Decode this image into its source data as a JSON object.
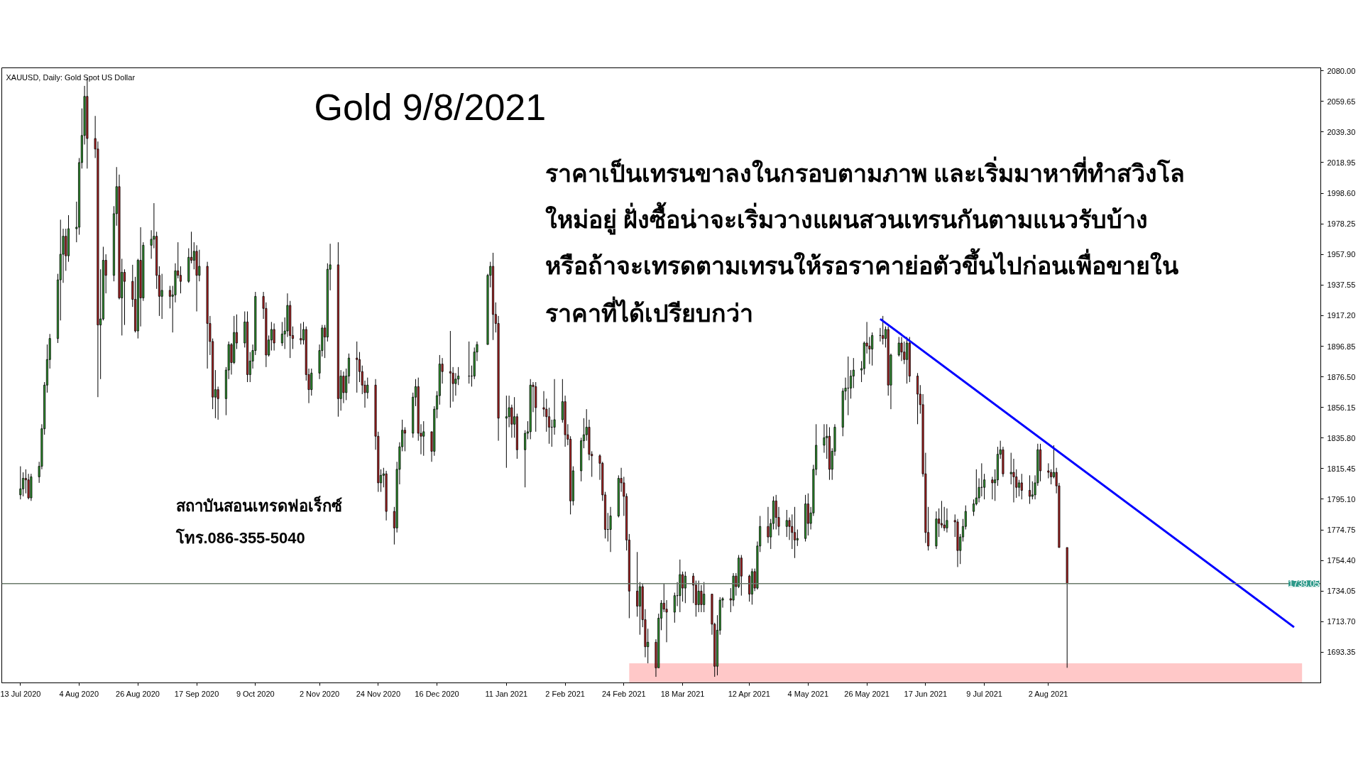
{
  "chart_data": {
    "type": "candlestick",
    "annotations": [
      "XAUUSD, Daily:  Gold Spot US Dollar",
      "Gold 9/8/2021",
      "ราคาเป็นเทรนขาลงในกรอบตามภาพ และเริ่มมาหาที่ทำสวิงโล",
      "ใหม่อยู่ ฝั่งซื้อน่าจะเริ่มวางแผนสวนเทรนกันตามแนวรับบ้าง",
      "หรือถ้าจะเทรดตามเทรนให้รอราคาย่อตัวขึ้นไปก่อนเพื่อขายใน",
      "ราคาที่ได้เปรียบกว่า",
      "สถาบันสอนเทรดฟอเร็กซ์",
      "โทร.086-355-5040"
    ],
    "xlim": [
      "2020-07-06",
      "2021-11-12"
    ],
    "ylim": [
      1673,
      2082
    ],
    "xticks": [
      {
        "value": "2020-07-13",
        "label": "13 Jul 2020"
      },
      {
        "value": "2020-08-04",
        "label": "4 Aug 2020"
      },
      {
        "value": "2020-08-26",
        "label": "26 Aug 2020"
      },
      {
        "value": "2020-09-17",
        "label": "17 Sep 2020"
      },
      {
        "value": "2020-10-09",
        "label": "9 Oct 2020"
      },
      {
        "value": "2020-11-02",
        "label": "2 Nov 2020"
      },
      {
        "value": "2020-11-24",
        "label": "24 Nov 2020"
      },
      {
        "value": "2020-12-16",
        "label": "16 Dec 2020"
      },
      {
        "value": "2021-01-11",
        "label": "11 Jan 2021"
      },
      {
        "value": "2021-02-02",
        "label": "2 Feb 2021"
      },
      {
        "value": "2021-02-24",
        "label": "24 Feb 2021"
      },
      {
        "value": "2021-03-18",
        "label": "18 Mar 2021"
      },
      {
        "value": "2021-04-12",
        "label": "12 Apr 2021"
      },
      {
        "value": "2021-05-04",
        "label": "4 May 2021"
      },
      {
        "value": "2021-05-26",
        "label": "26 May 2021"
      },
      {
        "value": "2021-06-17",
        "label": "17 Jun 2021"
      },
      {
        "value": "2021-07-09",
        "label": "9 Jul 2021"
      },
      {
        "value": "2021-08-02",
        "label": "2 Aug 2021"
      }
    ],
    "yticks": [
      {
        "value": 2080,
        "label": "2080.00"
      },
      2059.65,
      {
        "value": 2039.3,
        "label": "2039.30"
      },
      2018.95,
      {
        "value": 1998.6,
        "label": "1998.60"
      },
      1978.25,
      {
        "value": 1957.9,
        "label": "1957.90"
      },
      1937.55,
      {
        "value": 1917.2,
        "label": "1917.20"
      },
      1896.85,
      {
        "value": 1876.5,
        "label": "1876.50"
      },
      1856.15,
      {
        "value": 1835.8,
        "label": "1835.80"
      },
      1815.45,
      {
        "value": 1795.1,
        "label": "1795.10"
      },
      1774.75,
      {
        "value": 1754.4,
        "label": "1754.40"
      },
      1734.05,
      {
        "value": 1713.7,
        "label": "1713.70"
      },
      1693.35
    ],
    "ref_lines": [
      {
        "axis": "y",
        "value": 1739.05,
        "label": "1739.05",
        "color": "#6b7a6b"
      }
    ],
    "series": [
      {
        "type": "area",
        "x": [
          "2021-02-26",
          "2021-11-05"
        ],
        "values": [
          1686,
          1686
        ],
        "color": "#ffc8c8"
      },
      {
        "type": "line",
        "x": [
          "2021-05-31",
          "2021-11-02"
        ],
        "values": [
          1915,
          1710
        ],
        "color": "#0000ff"
      }
    ],
    "x": [
      "2020-07-13",
      "2020-07-14",
      "2020-07-15",
      "2020-07-16",
      "2020-07-17",
      "2020-07-20",
      "2020-07-21",
      "2020-07-22",
      "2020-07-23",
      "2020-07-24",
      "2020-07-27",
      "2020-07-28",
      "2020-07-29",
      "2020-07-30",
      "2020-07-31",
      "2020-08-03",
      "2020-08-04",
      "2020-08-05",
      "2020-08-06",
      "2020-08-07",
      "2020-08-10",
      "2020-08-11",
      "2020-08-12",
      "2020-08-13",
      "2020-08-14",
      "2020-08-17",
      "2020-08-18",
      "2020-08-19",
      "2020-08-20",
      "2020-08-21",
      "2020-08-24",
      "2020-08-25",
      "2020-08-26",
      "2020-08-27",
      "2020-08-28",
      "2020-08-31",
      "2020-09-01",
      "2020-09-02",
      "2020-09-03",
      "2020-09-04",
      "2020-09-07",
      "2020-09-08",
      "2020-09-09",
      "2020-09-10",
      "2020-09-11",
      "2020-09-14",
      "2020-09-15",
      "2020-09-16",
      "2020-09-17",
      "2020-09-18",
      "2020-09-21",
      "2020-09-22",
      "2020-09-23",
      "2020-09-24",
      "2020-09-25",
      "2020-09-28",
      "2020-09-29",
      "2020-09-30",
      "2020-10-01",
      "2020-10-02",
      "2020-10-05",
      "2020-10-06",
      "2020-10-07",
      "2020-10-08",
      "2020-10-09",
      "2020-10-12",
      "2020-10-13",
      "2020-10-14",
      "2020-10-15",
      "2020-10-16",
      "2020-10-19",
      "2020-10-20",
      "2020-10-21",
      "2020-10-22",
      "2020-10-23",
      "2020-10-26",
      "2020-10-27",
      "2020-10-28",
      "2020-10-29",
      "2020-10-30",
      "2020-11-02",
      "2020-11-03",
      "2020-11-04",
      "2020-11-05",
      "2020-11-06",
      "2020-11-09",
      "2020-11-10",
      "2020-11-11",
      "2020-11-12",
      "2020-11-13",
      "2020-11-16",
      "2020-11-17",
      "2020-11-18",
      "2020-11-19",
      "2020-11-20",
      "2020-11-23",
      "2020-11-24",
      "2020-11-25",
      "2020-11-26",
      "2020-11-27",
      "2020-11-30",
      "2020-12-01",
      "2020-12-02",
      "2020-12-03",
      "2020-12-04",
      "2020-12-07",
      "2020-12-08",
      "2020-12-09",
      "2020-12-10",
      "2020-12-11",
      "2020-12-14",
      "2020-12-15",
      "2020-12-16",
      "2020-12-17",
      "2020-12-18",
      "2020-12-21",
      "2020-12-22",
      "2020-12-23",
      "2020-12-24",
      "2020-12-28",
      "2020-12-29",
      "2020-12-30",
      "2020-12-31",
      "2021-01-04",
      "2021-01-05",
      "2021-01-06",
      "2021-01-07",
      "2021-01-08",
      "2021-01-11",
      "2021-01-12",
      "2021-01-13",
      "2021-01-14",
      "2021-01-15",
      "2021-01-18",
      "2021-01-19",
      "2021-01-20",
      "2021-01-21",
      "2021-01-22",
      "2021-01-25",
      "2021-01-26",
      "2021-01-27",
      "2021-01-28",
      "2021-01-29",
      "2021-02-01",
      "2021-02-02",
      "2021-02-03",
      "2021-02-04",
      "2021-02-05",
      "2021-02-08",
      "2021-02-09",
      "2021-02-10",
      "2021-02-11",
      "2021-02-12",
      "2021-02-15",
      "2021-02-16",
      "2021-02-17",
      "2021-02-18",
      "2021-02-19",
      "2021-02-22",
      "2021-02-23",
      "2021-02-24",
      "2021-02-25",
      "2021-02-26",
      "2021-03-01",
      "2021-03-02",
      "2021-03-03",
      "2021-03-04",
      "2021-03-05",
      "2021-03-08",
      "2021-03-09",
      "2021-03-10",
      "2021-03-11",
      "2021-03-12",
      "2021-03-15",
      "2021-03-16",
      "2021-03-17",
      "2021-03-18",
      "2021-03-19",
      "2021-03-22",
      "2021-03-23",
      "2021-03-24",
      "2021-03-25",
      "2021-03-26",
      "2021-03-29",
      "2021-03-30",
      "2021-03-31",
      "2021-04-01",
      "2021-04-02",
      "2021-04-05",
      "2021-04-06",
      "2021-04-07",
      "2021-04-08",
      "2021-04-09",
      "2021-04-12",
      "2021-04-13",
      "2021-04-14",
      "2021-04-15",
      "2021-04-16",
      "2021-04-19",
      "2021-04-20",
      "2021-04-21",
      "2021-04-22",
      "2021-04-23",
      "2021-04-26",
      "2021-04-27",
      "2021-04-28",
      "2021-04-29",
      "2021-04-30",
      "2021-05-03",
      "2021-05-04",
      "2021-05-05",
      "2021-05-06",
      "2021-05-07",
      "2021-05-10",
      "2021-05-11",
      "2021-05-12",
      "2021-05-13",
      "2021-05-14",
      "2021-05-17",
      "2021-05-18",
      "2021-05-19",
      "2021-05-20",
      "2021-05-21",
      "2021-05-24",
      "2021-05-25",
      "2021-05-26",
      "2021-05-27",
      "2021-05-28",
      "2021-05-31",
      "2021-06-01",
      "2021-06-02",
      "2021-06-03",
      "2021-06-04",
      "2021-06-07",
      "2021-06-08",
      "2021-06-09",
      "2021-06-10",
      "2021-06-11",
      "2021-06-14",
      "2021-06-15",
      "2021-06-16",
      "2021-06-17",
      "2021-06-18",
      "2021-06-21",
      "2021-06-22",
      "2021-06-23",
      "2021-06-24",
      "2021-06-25",
      "2021-06-28",
      "2021-06-29",
      "2021-06-30",
      "2021-07-01",
      "2021-07-02",
      "2021-07-05",
      "2021-07-06",
      "2021-07-07",
      "2021-07-08",
      "2021-07-09",
      "2021-07-12",
      "2021-07-13",
      "2021-07-14",
      "2021-07-15",
      "2021-07-16",
      "2021-07-19",
      "2021-07-20",
      "2021-07-21",
      "2021-07-22",
      "2021-07-23",
      "2021-07-26",
      "2021-07-27",
      "2021-07-28",
      "2021-07-29",
      "2021-07-30",
      "2021-08-02",
      "2021-08-03",
      "2021-08-04",
      "2021-08-05",
      "2021-08-06",
      "2021-08-09"
    ],
    "ohlc": [
      [
        1798,
        1817,
        1795,
        1802
      ],
      [
        1802,
        1813,
        1797,
        1809
      ],
      [
        1809,
        1815,
        1799,
        1808
      ],
      [
        1808,
        1812,
        1795,
        1796
      ],
      [
        1796,
        1812,
        1794,
        1810
      ],
      [
        1810,
        1820,
        1806,
        1817
      ],
      [
        1817,
        1845,
        1815,
        1842
      ],
      [
        1842,
        1873,
        1838,
        1871
      ],
      [
        1871,
        1898,
        1866,
        1888
      ],
      [
        1888,
        1905,
        1882,
        1902
      ],
      [
        1902,
        1945,
        1899,
        1941
      ],
      [
        1941,
        1981,
        1914,
        1958
      ],
      [
        1958,
        1975,
        1939,
        1970
      ],
      [
        1970,
        1975,
        1947,
        1957
      ],
      [
        1957,
        1984,
        1953,
        1975
      ],
      [
        1975,
        1993,
        1966,
        1976
      ],
      [
        1976,
        2022,
        1971,
        2019
      ],
      [
        2019,
        2055,
        2015,
        2037
      ],
      [
        2037,
        2070,
        2031,
        2063
      ],
      [
        2063,
        2075,
        2015,
        2035
      ],
      [
        2035,
        2050,
        2022,
        2028
      ],
      [
        2028,
        2033,
        1863,
        1911
      ],
      [
        1911,
        1948,
        1875,
        1915
      ],
      [
        1915,
        1963,
        1914,
        1954
      ],
      [
        1954,
        1958,
        1932,
        1944
      ],
      [
        1944,
        1990,
        1940,
        1985
      ],
      [
        1985,
        2016,
        1977,
        2003
      ],
      [
        2003,
        2011,
        1928,
        1929
      ],
      [
        1929,
        1955,
        1904,
        1946
      ],
      [
        1946,
        1948,
        1911,
        1940
      ],
      [
        1940,
        1951,
        1923,
        1928
      ],
      [
        1928,
        1943,
        1906,
        1907
      ],
      [
        1907,
        1955,
        1902,
        1954
      ],
      [
        1954,
        1976,
        1910,
        1929
      ],
      [
        1929,
        1966,
        1927,
        1964
      ],
      [
        1964,
        1974,
        1955,
        1968
      ],
      [
        1968,
        1992,
        1962,
        1970
      ],
      [
        1970,
        1973,
        1935,
        1944
      ],
      [
        1944,
        1950,
        1917,
        1930
      ],
      [
        1930,
        1945,
        1915,
        1934
      ],
      [
        1934,
        1937,
        1922,
        1930
      ],
      [
        1930,
        1937,
        1906,
        1931
      ],
      [
        1931,
        1952,
        1926,
        1947
      ],
      [
        1947,
        1966,
        1942,
        1944
      ],
      [
        1944,
        1950,
        1932,
        1940
      ],
      [
        1940,
        1962,
        1939,
        1956
      ],
      [
        1956,
        1973,
        1952,
        1954
      ],
      [
        1954,
        1966,
        1948,
        1960
      ],
      [
        1960,
        1964,
        1920,
        1944
      ],
      [
        1944,
        1961,
        1940,
        1950
      ],
      [
        1950,
        1953,
        1882,
        1912
      ],
      [
        1912,
        1917,
        1891,
        1900
      ],
      [
        1900,
        1902,
        1855,
        1863
      ],
      [
        1863,
        1881,
        1849,
        1868
      ],
      [
        1868,
        1870,
        1848,
        1862
      ],
      [
        1862,
        1883,
        1851,
        1881
      ],
      [
        1881,
        1900,
        1875,
        1898
      ],
      [
        1898,
        1899,
        1878,
        1886
      ],
      [
        1886,
        1917,
        1885,
        1906
      ],
      [
        1906,
        1918,
        1895,
        1899
      ],
      [
        1899,
        1920,
        1896,
        1913
      ],
      [
        1913,
        1920,
        1873,
        1878
      ],
      [
        1878,
        1893,
        1873,
        1887
      ],
      [
        1887,
        1898,
        1882,
        1894
      ],
      [
        1894,
        1933,
        1891,
        1930
      ],
      [
        1930,
        1933,
        1915,
        1922
      ],
      [
        1922,
        1926,
        1883,
        1891
      ],
      [
        1891,
        1904,
        1890,
        1901
      ],
      [
        1901,
        1913,
        1894,
        1908
      ],
      [
        1908,
        1912,
        1894,
        1899
      ],
      [
        1899,
        1913,
        1897,
        1905
      ],
      [
        1905,
        1916,
        1895,
        1907
      ],
      [
        1907,
        1932,
        1903,
        1924
      ],
      [
        1924,
        1927,
        1889,
        1904
      ],
      [
        1904,
        1910,
        1895,
        1902
      ],
      [
        1902,
        1912,
        1898,
        1901
      ],
      [
        1901,
        1913,
        1898,
        1908
      ],
      [
        1908,
        1910,
        1874,
        1878
      ],
      [
        1878,
        1882,
        1859,
        1868
      ],
      [
        1868,
        1882,
        1864,
        1879
      ],
      [
        1879,
        1898,
        1875,
        1894
      ],
      [
        1894,
        1911,
        1890,
        1909
      ],
      [
        1909,
        1911,
        1889,
        1903
      ],
      [
        1903,
        1952,
        1900,
        1948
      ],
      [
        1948,
        1965,
        1934,
        1951
      ],
      [
        1951,
        1966,
        1850,
        1862
      ],
      [
        1862,
        1881,
        1854,
        1877
      ],
      [
        1877,
        1880,
        1859,
        1866
      ],
      [
        1866,
        1882,
        1861,
        1877
      ],
      [
        1877,
        1892,
        1872,
        1889
      ],
      [
        1889,
        1900,
        1866,
        1888
      ],
      [
        1888,
        1893,
        1873,
        1880
      ],
      [
        1880,
        1884,
        1865,
        1871
      ],
      [
        1871,
        1874,
        1856,
        1866
      ],
      [
        1866,
        1876,
        1862,
        1871
      ],
      [
        1871,
        1875,
        1828,
        1837
      ],
      [
        1837,
        1840,
        1800,
        1806
      ],
      [
        1806,
        1815,
        1800,
        1811
      ],
      [
        1811,
        1816,
        1803,
        1812
      ],
      [
        1812,
        1814,
        1781,
        1787
      ],
      [
        1787,
        1790,
        1765,
        1776
      ],
      [
        1776,
        1820,
        1773,
        1815
      ],
      [
        1815,
        1833,
        1805,
        1830
      ],
      [
        1830,
        1848,
        1827,
        1841
      ],
      [
        1841,
        1843,
        1827,
        1839
      ],
      [
        1839,
        1866,
        1836,
        1863
      ],
      [
        1863,
        1875,
        1857,
        1870
      ],
      [
        1870,
        1876,
        1834,
        1839
      ],
      [
        1839,
        1845,
        1825,
        1837
      ],
      [
        1837,
        1847,
        1824,
        1840
      ],
      [
        1840,
        1840,
        1820,
        1827
      ],
      [
        1827,
        1857,
        1824,
        1855
      ],
      [
        1855,
        1867,
        1849,
        1864
      ],
      [
        1864,
        1891,
        1858,
        1885
      ],
      [
        1885,
        1889,
        1872,
        1880
      ],
      [
        1880,
        1907,
        1856,
        1879
      ],
      [
        1879,
        1883,
        1860,
        1872
      ],
      [
        1872,
        1879,
        1864,
        1875
      ],
      [
        1875,
        1883,
        1871,
        1877
      ],
      [
        1877,
        1900,
        1872,
        1877
      ],
      [
        1877,
        1884,
        1870,
        1877
      ],
      [
        1877,
        1896,
        1875,
        1893
      ],
      [
        1893,
        1900,
        1887,
        1898
      ],
      [
        1898,
        1945,
        1898,
        1944
      ],
      [
        1944,
        1953,
        1936,
        1950
      ],
      [
        1950,
        1959,
        1901,
        1918
      ],
      [
        1918,
        1926,
        1906,
        1912
      ],
      [
        1912,
        1917,
        1834,
        1849
      ],
      [
        1849,
        1864,
        1816,
        1850
      ],
      [
        1850,
        1864,
        1843,
        1856
      ],
      [
        1856,
        1858,
        1836,
        1845
      ],
      [
        1845,
        1863,
        1836,
        1850
      ],
      [
        1850,
        1852,
        1822,
        1828
      ],
      [
        1828,
        1841,
        1803,
        1839
      ],
      [
        1839,
        1847,
        1835,
        1840
      ],
      [
        1840,
        1875,
        1835,
        1871
      ],
      [
        1871,
        1873,
        1853,
        1870
      ],
      [
        1870,
        1873,
        1840,
        1856
      ],
      [
        1856,
        1867,
        1850,
        1855
      ],
      [
        1855,
        1862,
        1840,
        1850
      ],
      [
        1850,
        1856,
        1832,
        1843
      ],
      [
        1843,
        1848,
        1830,
        1843
      ],
      [
        1843,
        1875,
        1838,
        1848
      ],
      [
        1848,
        1875,
        1846,
        1860
      ],
      [
        1860,
        1864,
        1830,
        1838
      ],
      [
        1838,
        1845,
        1831,
        1835
      ],
      [
        1835,
        1837,
        1785,
        1794
      ],
      [
        1794,
        1817,
        1791,
        1814
      ],
      [
        1814,
        1836,
        1807,
        1834
      ],
      [
        1834,
        1849,
        1829,
        1838
      ],
      [
        1838,
        1855,
        1834,
        1843
      ],
      [
        1843,
        1848,
        1821,
        1825
      ],
      [
        1825,
        1827,
        1810,
        1824
      ],
      [
        1824,
        1825,
        1808,
        1819
      ],
      [
        1819,
        1820,
        1794,
        1798
      ],
      [
        1798,
        1800,
        1769,
        1775
      ],
      [
        1775,
        1786,
        1767,
        1775
      ],
      [
        1775,
        1790,
        1760,
        1784
      ],
      [
        1784,
        1811,
        1783,
        1809
      ],
      [
        1809,
        1816,
        1800,
        1806
      ],
      [
        1806,
        1810,
        1784,
        1797
      ],
      [
        1797,
        1799,
        1761,
        1768
      ],
      [
        1768,
        1772,
        1716,
        1734
      ],
      [
        1734,
        1760,
        1717,
        1724
      ],
      [
        1724,
        1740,
        1705,
        1737
      ],
      [
        1737,
        1739,
        1710,
        1715
      ],
      [
        1715,
        1722,
        1690,
        1697
      ],
      [
        1697,
        1709,
        1686,
        1700
      ],
      [
        1700,
        1702,
        1677,
        1683
      ],
      [
        1683,
        1719,
        1683,
        1716
      ],
      [
        1716,
        1728,
        1708,
        1726
      ],
      [
        1726,
        1739,
        1720,
        1722
      ],
      [
        1722,
        1728,
        1700,
        1720
      ],
      [
        1720,
        1733,
        1713,
        1731
      ],
      [
        1731,
        1740,
        1724,
        1731
      ],
      [
        1731,
        1755,
        1720,
        1745
      ],
      [
        1745,
        1747,
        1727,
        1736
      ],
      [
        1736,
        1747,
        1726,
        1744
      ],
      [
        1744,
        1746,
        1726,
        1738
      ],
      [
        1738,
        1741,
        1717,
        1725
      ],
      [
        1725,
        1741,
        1720,
        1734
      ],
      [
        1734,
        1738,
        1720,
        1725
      ],
      [
        1725,
        1740,
        1720,
        1732
      ],
      [
        1732,
        1732,
        1705,
        1712
      ],
      [
        1712,
        1713,
        1677,
        1684
      ],
      [
        1684,
        1718,
        1678,
        1708
      ],
      [
        1708,
        1730,
        1705,
        1728
      ],
      [
        1728,
        1730,
        1723,
        1729
      ],
      [
        1729,
        1736,
        1720,
        1728
      ],
      [
        1728,
        1746,
        1724,
        1744
      ],
      [
        1744,
        1746,
        1731,
        1737
      ],
      [
        1737,
        1758,
        1736,
        1756
      ],
      [
        1756,
        1758,
        1731,
        1744
      ],
      [
        1744,
        1745,
        1727,
        1732
      ],
      [
        1732,
        1749,
        1725,
        1747
      ],
      [
        1747,
        1749,
        1734,
        1736
      ],
      [
        1736,
        1767,
        1735,
        1764
      ],
      [
        1764,
        1784,
        1760,
        1777
      ],
      [
        1777,
        1790,
        1766,
        1770
      ],
      [
        1770,
        1782,
        1762,
        1779
      ],
      [
        1779,
        1797,
        1775,
        1794
      ],
      [
        1794,
        1798,
        1775,
        1783
      ],
      [
        1783,
        1790,
        1771,
        1777
      ],
      [
        1777,
        1788,
        1770,
        1781
      ],
      [
        1781,
        1783,
        1768,
        1777
      ],
      [
        1777,
        1785,
        1762,
        1773
      ],
      [
        1773,
        1790,
        1756,
        1768
      ],
      [
        1768,
        1775,
        1764,
        1769
      ],
      [
        1769,
        1798,
        1767,
        1792
      ],
      [
        1792,
        1799,
        1771,
        1779
      ],
      [
        1779,
        1790,
        1775,
        1786
      ],
      [
        1786,
        1818,
        1784,
        1815
      ],
      [
        1815,
        1845,
        1811,
        1831
      ],
      [
        1831,
        1845,
        1826,
        1836
      ],
      [
        1836,
        1845,
        1822,
        1837
      ],
      [
        1837,
        1843,
        1808,
        1815
      ],
      [
        1815,
        1829,
        1808,
        1827
      ],
      [
        1827,
        1845,
        1824,
        1843
      ],
      [
        1843,
        1869,
        1837,
        1867
      ],
      [
        1867,
        1876,
        1861,
        1869
      ],
      [
        1869,
        1890,
        1851,
        1869
      ],
      [
        1869,
        1881,
        1862,
        1877
      ],
      [
        1877,
        1889,
        1869,
        1881
      ],
      [
        1881,
        1887,
        1873,
        1882
      ],
      [
        1882,
        1900,
        1878,
        1899
      ],
      [
        1899,
        1913,
        1892,
        1897
      ],
      [
        1897,
        1903,
        1885,
        1895
      ],
      [
        1895,
        1906,
        1884,
        1904
      ],
      [
        1904,
        1909,
        1900,
        1904
      ],
      [
        1904,
        1917,
        1898,
        1902
      ],
      [
        1902,
        1910,
        1896,
        1908
      ],
      [
        1908,
        1910,
        1864,
        1871
      ],
      [
        1871,
        1892,
        1855,
        1891
      ],
      [
        1891,
        1903,
        1890,
        1899
      ],
      [
        1899,
        1903,
        1887,
        1893
      ],
      [
        1893,
        1900,
        1885,
        1888
      ],
      [
        1888,
        1903,
        1872,
        1899
      ],
      [
        1899,
        1903,
        1873,
        1877
      ],
      [
        1877,
        1879,
        1845,
        1865
      ],
      [
        1865,
        1871,
        1852,
        1858
      ],
      [
        1858,
        1865,
        1810,
        1812
      ],
      [
        1812,
        1826,
        1766,
        1773
      ],
      [
        1773,
        1790,
        1761,
        1764
      ],
      [
        1764,
        1787,
        1762,
        1782
      ],
      [
        1782,
        1789,
        1770,
        1779
      ],
      [
        1779,
        1794,
        1776,
        1778
      ],
      [
        1778,
        1790,
        1774,
        1776
      ],
      [
        1776,
        1789,
        1773,
        1781
      ],
      [
        1781,
        1785,
        1770,
        1780
      ],
      [
        1780,
        1782,
        1750,
        1761
      ],
      [
        1761,
        1772,
        1752,
        1770
      ],
      [
        1770,
        1782,
        1767,
        1777
      ],
      [
        1777,
        1791,
        1775,
        1787
      ],
      [
        1787,
        1795,
        1784,
        1792
      ],
      [
        1792,
        1815,
        1791,
        1796
      ],
      [
        1796,
        1809,
        1793,
        1803
      ],
      [
        1803,
        1819,
        1797,
        1803
      ],
      [
        1803,
        1812,
        1795,
        1808
      ],
      [
        1808,
        1810,
        1795,
        1806
      ],
      [
        1806,
        1815,
        1794,
        1808
      ],
      [
        1808,
        1830,
        1804,
        1825
      ],
      [
        1825,
        1834,
        1822,
        1828
      ],
      [
        1828,
        1830,
        1810,
        1812
      ],
      [
        1812,
        1826,
        1805,
        1813
      ],
      [
        1813,
        1822,
        1793,
        1810
      ],
      [
        1810,
        1815,
        1796,
        1803
      ],
      [
        1803,
        1808,
        1797,
        1806
      ],
      [
        1806,
        1812,
        1795,
        1801
      ],
      [
        1801,
        1811,
        1792,
        1797
      ],
      [
        1797,
        1807,
        1795,
        1798
      ],
      [
        1798,
        1811,
        1795,
        1806
      ],
      [
        1806,
        1832,
        1804,
        1828
      ],
      [
        1828,
        1832,
        1807,
        1814
      ],
      [
        1814,
        1819,
        1809,
        1813
      ],
      [
        1813,
        1815,
        1805,
        1810
      ],
      [
        1810,
        1831,
        1809,
        1813
      ],
      [
        1813,
        1816,
        1799,
        1804
      ],
      [
        1804,
        1806,
        1763,
        1763
      ],
      [
        1763,
        1763,
        1683,
        1739
      ]
    ]
  }
}
